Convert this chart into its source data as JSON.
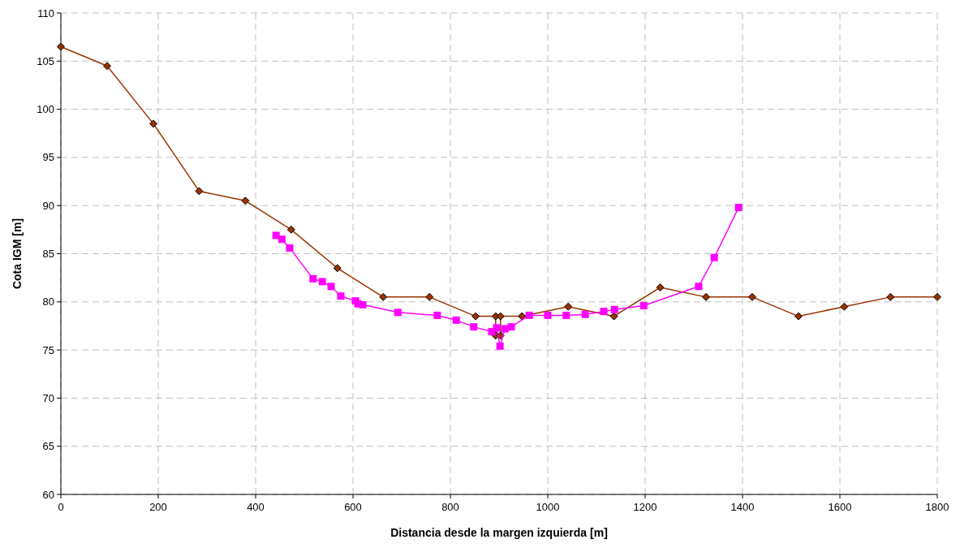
{
  "chart_data": {
    "type": "line",
    "xlabel": "Distancia desde la margen izquierda [m]",
    "ylabel": "Cota IGM [m]",
    "xlim": [
      0,
      1800
    ],
    "xticks": [
      0,
      200,
      400,
      600,
      800,
      1000,
      1200,
      1400,
      1600,
      1800
    ],
    "ylim": [
      60,
      110
    ],
    "yticks": [
      60,
      65,
      70,
      75,
      80,
      85,
      90,
      95,
      100,
      105,
      110
    ],
    "grid": true,
    "series": [
      {
        "color": "#993300",
        "marker": "diamond",
        "x": [
          0,
          95,
          190,
          284,
          379,
          473,
          568,
          662,
          757,
          852,
          893,
          893,
          903,
          903,
          947,
          1042,
          1136,
          1231,
          1325,
          1420,
          1515,
          1609,
          1704,
          1800
        ],
        "values": [
          106.5,
          104.5,
          98.5,
          91.5,
          90.5,
          87.5,
          83.5,
          80.5,
          80.5,
          78.5,
          78.5,
          76.5,
          76.5,
          78.5,
          78.5,
          79.5,
          78.5,
          81.5,
          80.5,
          80.5,
          78.5,
          79.5,
          80.5,
          80.5
        ]
      },
      {
        "color": "#ff00ff",
        "marker": "square",
        "x": [
          442,
          454,
          470,
          518,
          537,
          555,
          575,
          605,
          610,
          620,
          692,
          773,
          812,
          848,
          885,
          895,
          902,
          912,
          925,
          962,
          1000,
          1038,
          1077,
          1115,
          1137,
          1197,
          1310,
          1342,
          1392
        ],
        "values": [
          86.9,
          86.5,
          85.6,
          82.4,
          82.1,
          81.6,
          80.6,
          80.1,
          79.8,
          79.7,
          78.9,
          78.6,
          78.1,
          77.4,
          76.9,
          77.3,
          75.4,
          77.2,
          77.4,
          78.6,
          78.6,
          78.6,
          78.7,
          79.0,
          79.2,
          79.6,
          81.6,
          84.6,
          89.8
        ]
      }
    ]
  }
}
